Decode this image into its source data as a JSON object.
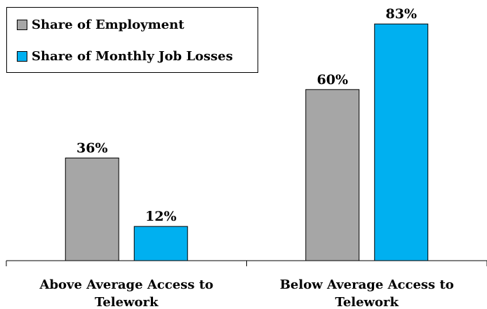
{
  "chart_data": {
    "type": "bar",
    "title": "",
    "xlabel": "",
    "ylabel": "",
    "ylim": [
      0,
      90
    ],
    "categories": [
      [
        "Above Average Access to",
        "Telework"
      ],
      [
        "Below Average Access to",
        "Telework"
      ]
    ],
    "series": [
      {
        "name": "Share of Employment",
        "values": [
          36,
          60
        ],
        "labels": [
          "36%",
          "60%"
        ],
        "color": "#a6a6a6"
      },
      {
        "name": "Share of Monthly Job Losses",
        "values": [
          12,
          83
        ],
        "labels": [
          "12%",
          "83%"
        ],
        "color": "#00b0f0"
      }
    ],
    "legend": "top-left",
    "grid": false
  }
}
